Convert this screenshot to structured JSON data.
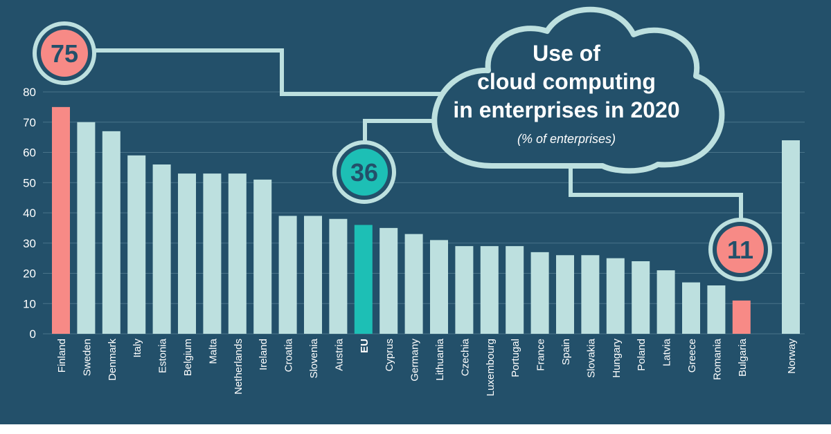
{
  "chart_data": {
    "type": "bar",
    "title_lines": [
      "Use of",
      "cloud computing",
      "in enterprises in 2020"
    ],
    "subtitle": "(% of enterprises)",
    "ylim": [
      0,
      80
    ],
    "yticks": [
      0,
      10,
      20,
      30,
      40,
      50,
      60,
      70,
      80
    ],
    "grid": true,
    "categories": [
      "Finland",
      "Sweden",
      "Denmark",
      "Italy",
      "Estonia",
      "Belgium",
      "Malta",
      "Netherlands",
      "Ireland",
      "Croatia",
      "Slovenia",
      "Austria",
      "EU",
      "Cyprus",
      "Germany",
      "Lithuania",
      "Czechia",
      "Luxembourg",
      "Portugal",
      "France",
      "Spain",
      "Slovakia",
      "Hungary",
      "Poland",
      "Latvia",
      "Greece",
      "Romania",
      "Bulgaria",
      "Norway"
    ],
    "values": [
      75,
      70,
      67,
      59,
      56,
      53,
      53,
      53,
      51,
      39,
      39,
      38,
      36,
      35,
      33,
      31,
      29,
      29,
      29,
      27,
      26,
      26,
      25,
      24,
      21,
      17,
      16,
      11,
      64
    ],
    "highlights": [
      {
        "category": "Finland",
        "label": "75",
        "style": "max"
      },
      {
        "category": "EU",
        "label": "36",
        "style": "eu"
      },
      {
        "category": "Bulgaria",
        "label": "11",
        "style": "min"
      }
    ],
    "colors": {
      "background": "#23506a",
      "bar": "#bde0df",
      "highlight": "#f78a86",
      "eu": "#1dbfb5",
      "grid": "#4a7489",
      "connector": "#bde0df",
      "bubble_ring": "#bde0df",
      "bubble_text": "#23506a"
    }
  }
}
